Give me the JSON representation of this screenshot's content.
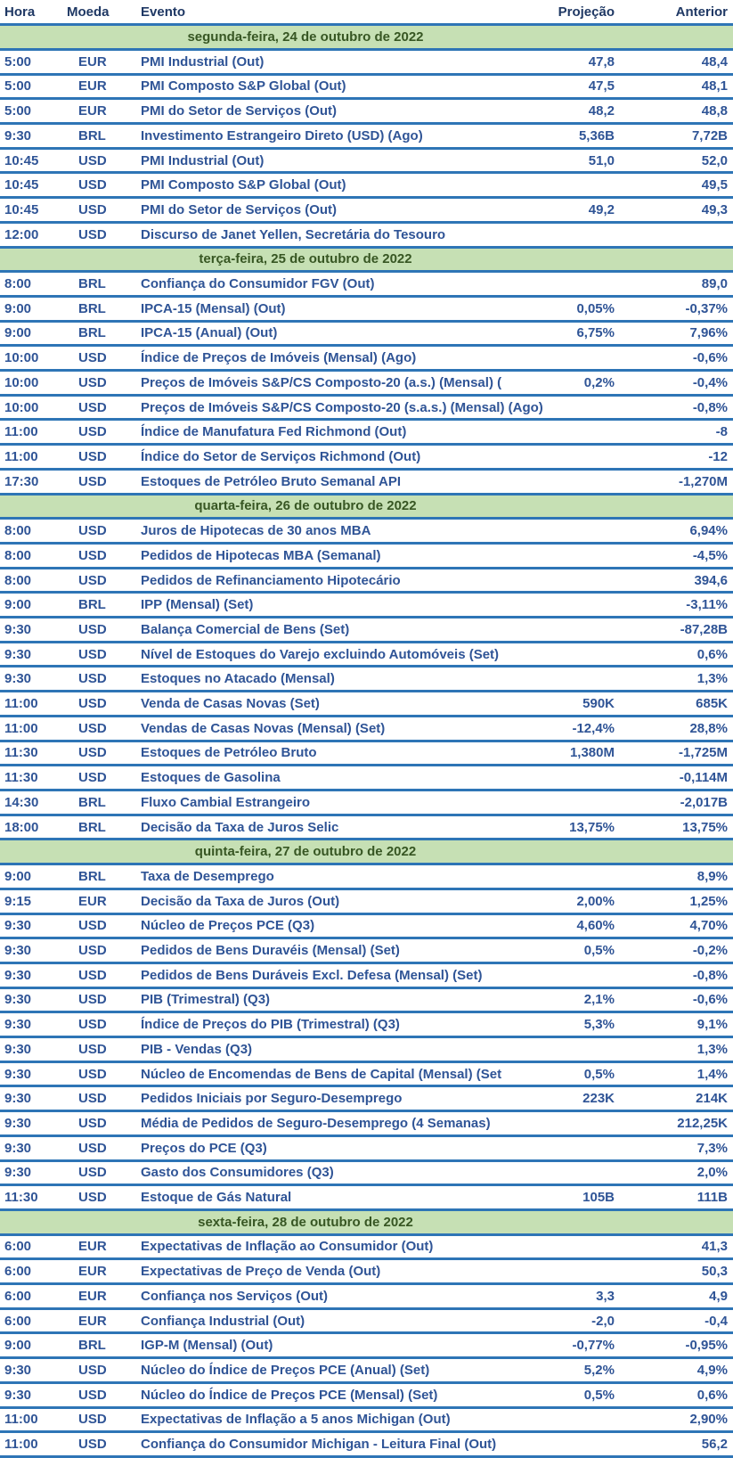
{
  "colors": {
    "separator_line": "#2E75B6",
    "header_text": "#1F3864",
    "data_text": "#2F5496",
    "day_band_background": "#C6E0B4",
    "day_band_text": "#375623"
  },
  "table": {
    "columns": [
      "Hora",
      "Moeda",
      "Evento",
      "Projeção",
      "Anterior"
    ],
    "days": [
      {
        "label": "segunda-feira, 24 de outubro de 2022",
        "rows": [
          {
            "time": "5:00",
            "currency": "EUR",
            "event": "PMI Industrial (Out)",
            "forecast": "47,8",
            "previous": "48,4"
          },
          {
            "time": "5:00",
            "currency": "EUR",
            "event": "PMI Composto S&P Global (Out)",
            "forecast": "47,5",
            "previous": "48,1"
          },
          {
            "time": "5:00",
            "currency": "EUR",
            "event": "PMI do Setor de Serviços (Out)",
            "forecast": "48,2",
            "previous": "48,8"
          },
          {
            "time": "9:30",
            "currency": "BRL",
            "event": "Investimento Estrangeiro Direto (USD) (Ago)",
            "forecast": "5,36B",
            "previous": "7,72B"
          },
          {
            "time": "10:45",
            "currency": "USD",
            "event": "PMI Industrial (Out)",
            "forecast": "51,0",
            "previous": "52,0"
          },
          {
            "time": "10:45",
            "currency": "USD",
            "event": "PMI Composto S&P Global (Out)",
            "forecast": "",
            "previous": "49,5"
          },
          {
            "time": "10:45",
            "currency": "USD",
            "event": "PMI do Setor de Serviços (Out)",
            "forecast": "49,2",
            "previous": "49,3"
          },
          {
            "time": "12:00",
            "currency": "USD",
            "event": "Discurso de Janet Yellen, Secretária do Tesouro",
            "forecast": "",
            "previous": ""
          }
        ]
      },
      {
        "label": "terça-feira, 25 de outubro de 2022",
        "rows": [
          {
            "time": "8:00",
            "currency": "BRL",
            "event": "Confiança do Consumidor FGV (Out)",
            "forecast": "",
            "previous": "89,0"
          },
          {
            "time": "9:00",
            "currency": "BRL",
            "event": "IPCA-15 (Mensal) (Out)",
            "forecast": "0,05%",
            "previous": "-0,37%"
          },
          {
            "time": "9:00",
            "currency": "BRL",
            "event": "IPCA-15 (Anual) (Out)",
            "forecast": "6,75%",
            "previous": "7,96%"
          },
          {
            "time": "10:00",
            "currency": "USD",
            "event": "Índice de Preços de Imóveis (Mensal) (Ago)",
            "forecast": "",
            "previous": "-0,6%"
          },
          {
            "time": "10:00",
            "currency": "USD",
            "event": "Preços de Imóveis S&P/CS Composto-20 (a.s.) (Mensal) (",
            "forecast": "0,2%",
            "previous": "-0,4%"
          },
          {
            "time": "10:00",
            "currency": "USD",
            "event": "Preços de Imóveis S&P/CS Composto-20 (s.a.s.) (Mensal) (Ago)",
            "forecast": "",
            "previous": "-0,8%"
          },
          {
            "time": "11:00",
            "currency": "USD",
            "event": "Índice de Manufatura Fed Richmond (Out)",
            "forecast": "",
            "previous": "-8"
          },
          {
            "time": "11:00",
            "currency": "USD",
            "event": "Índice do Setor de Serviços Richmond (Out)",
            "forecast": "",
            "previous": "-12"
          },
          {
            "time": "17:30",
            "currency": "USD",
            "event": "Estoques de Petróleo Bruto Semanal API",
            "forecast": "",
            "previous": "-1,270M"
          }
        ]
      },
      {
        "label": "quarta-feira, 26 de outubro de 2022",
        "rows": [
          {
            "time": "8:00",
            "currency": "USD",
            "event": "Juros de Hipotecas de 30 anos MBA",
            "forecast": "",
            "previous": "6,94%"
          },
          {
            "time": "8:00",
            "currency": "USD",
            "event": "Pedidos de Hipotecas MBA (Semanal)",
            "forecast": "",
            "previous": "-4,5%"
          },
          {
            "time": "8:00",
            "currency": "USD",
            "event": "Pedidos de Refinanciamento Hipotecário",
            "forecast": "",
            "previous": "394,6"
          },
          {
            "time": "9:00",
            "currency": "BRL",
            "event": "IPP (Mensal) (Set)",
            "forecast": "",
            "previous": "-3,11%"
          },
          {
            "time": "9:30",
            "currency": "USD",
            "event": "Balança Comercial de Bens (Set)",
            "forecast": "",
            "previous": "-87,28B"
          },
          {
            "time": "9:30",
            "currency": "USD",
            "event": "Nível de Estoques do Varejo excluindo Automóveis (Set)",
            "forecast": "",
            "previous": "0,6%"
          },
          {
            "time": "9:30",
            "currency": "USD",
            "event": "Estoques no Atacado (Mensal)",
            "forecast": "",
            "previous": "1,3%"
          },
          {
            "time": "11:00",
            "currency": "USD",
            "event": "Venda de Casas Novas (Set)",
            "forecast": "590K",
            "previous": "685K"
          },
          {
            "time": "11:00",
            "currency": "USD",
            "event": "Vendas de Casas Novas (Mensal) (Set)",
            "forecast": "-12,4%",
            "previous": "28,8%"
          },
          {
            "time": "11:30",
            "currency": "USD",
            "event": "Estoques de Petróleo Bruto",
            "forecast": "1,380M",
            "previous": "-1,725M"
          },
          {
            "time": "11:30",
            "currency": "USD",
            "event": "Estoques de Gasolina",
            "forecast": "",
            "previous": "-0,114M"
          },
          {
            "time": "14:30",
            "currency": "BRL",
            "event": "Fluxo Cambial Estrangeiro",
            "forecast": "",
            "previous": "-2,017B"
          },
          {
            "time": "18:00",
            "currency": "BRL",
            "event": "Decisão da Taxa de Juros Selic",
            "forecast": "13,75%",
            "previous": "13,75%"
          }
        ]
      },
      {
        "label": "quinta-feira, 27 de outubro de 2022",
        "rows": [
          {
            "time": "9:00",
            "currency": "BRL",
            "event": "Taxa de Desemprego",
            "forecast": "",
            "previous": "8,9%"
          },
          {
            "time": "9:15",
            "currency": "EUR",
            "event": "Decisão da Taxa de Juros (Out)",
            "forecast": "2,00%",
            "previous": "1,25%"
          },
          {
            "time": "9:30",
            "currency": "USD",
            "event": "Núcleo de Preços PCE (Q3)",
            "forecast": "4,60%",
            "previous": "4,70%"
          },
          {
            "time": "9:30",
            "currency": "USD",
            "event": "Pedidos de Bens Duravéis (Mensal) (Set)",
            "forecast": "0,5%",
            "previous": "-0,2%"
          },
          {
            "time": "9:30",
            "currency": "USD",
            "event": "Pedidos de Bens Duráveis Excl. Defesa (Mensal) (Set)",
            "forecast": "",
            "previous": "-0,8%"
          },
          {
            "time": "9:30",
            "currency": "USD",
            "event": "PIB (Trimestral) (Q3)",
            "forecast": "2,1%",
            "previous": "-0,6%"
          },
          {
            "time": "9:30",
            "currency": "USD",
            "event": "Índice de Preços do PIB (Trimestral) (Q3)",
            "forecast": "5,3%",
            "previous": "9,1%"
          },
          {
            "time": "9:30",
            "currency": "USD",
            "event": "PIB - Vendas (Q3)",
            "forecast": "",
            "previous": "1,3%"
          },
          {
            "time": "9:30",
            "currency": "USD",
            "event": "Núcleo de Encomendas de Bens de Capital (Mensal) (Set",
            "forecast": "0,5%",
            "previous": "1,4%"
          },
          {
            "time": "9:30",
            "currency": "USD",
            "event": "Pedidos Iniciais por Seguro-Desemprego",
            "forecast": "223K",
            "previous": "214K"
          },
          {
            "time": "9:30",
            "currency": "USD",
            "event": "Média de Pedidos de Seguro-Desemprego (4 Semanas)",
            "forecast": "",
            "previous": "212,25K"
          },
          {
            "time": "9:30",
            "currency": "USD",
            "event": "Preços do PCE (Q3)",
            "forecast": "",
            "previous": "7,3%"
          },
          {
            "time": "9:30",
            "currency": "USD",
            "event": "Gasto dos Consumidores (Q3)",
            "forecast": "",
            "previous": "2,0%"
          },
          {
            "time": "11:30",
            "currency": "USD",
            "event": "Estoque de Gás Natural",
            "forecast": "105B",
            "previous": "111B"
          }
        ]
      },
      {
        "label": "sexta-feira, 28 de outubro de 2022",
        "rows": [
          {
            "time": "6:00",
            "currency": "EUR",
            "event": "Expectativas de Inflação ao Consumidor (Out)",
            "forecast": "",
            "previous": "41,3"
          },
          {
            "time": "6:00",
            "currency": "EUR",
            "event": "Expectativas de Preço de Venda (Out)",
            "forecast": "",
            "previous": "50,3"
          },
          {
            "time": "6:00",
            "currency": "EUR",
            "event": "Confiança nos Serviços (Out)",
            "forecast": "3,3",
            "previous": "4,9"
          },
          {
            "time": "6:00",
            "currency": "EUR",
            "event": "Confiança Industrial (Out)",
            "forecast": "-2,0",
            "previous": "-0,4"
          },
          {
            "time": "9:00",
            "currency": "BRL",
            "event": "IGP-M (Mensal) (Out)",
            "forecast": "-0,77%",
            "previous": "-0,95%"
          },
          {
            "time": "9:30",
            "currency": "USD",
            "event": "Núcleo do Índice de Preços PCE (Anual) (Set)",
            "forecast": "5,2%",
            "previous": "4,9%"
          },
          {
            "time": "9:30",
            "currency": "USD",
            "event": "Núcleo do Índice de Preços PCE (Mensal) (Set)",
            "forecast": "0,5%",
            "previous": "0,6%"
          },
          {
            "time": "11:00",
            "currency": "USD",
            "event": "Expectativas de Inflação a 5 anos Michigan (Out)",
            "forecast": "",
            "previous": "2,90%"
          },
          {
            "time": "11:00",
            "currency": "USD",
            "event": "Confiança do Consumidor Michigan - Leitura Final (Out)",
            "forecast": "",
            "previous": "56,2"
          }
        ]
      }
    ]
  }
}
